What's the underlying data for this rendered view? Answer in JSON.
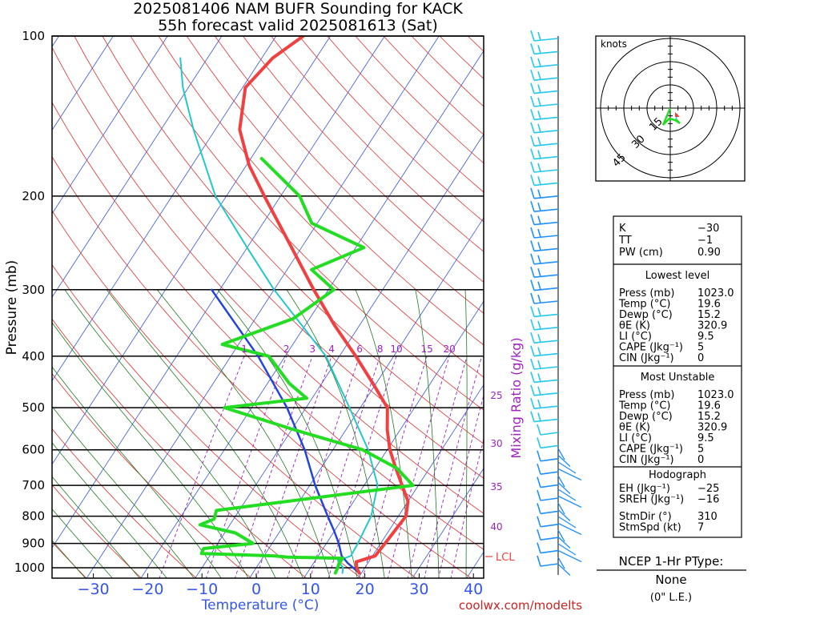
{
  "title": {
    "line1": "2025081406 NAM BUFR Sounding for KACK",
    "line2": "55h forecast valid 2025081613 (Sat)"
  },
  "axes": {
    "ylabel": "Pressure (mb)",
    "xlabel": "Temperature (°C)",
    "mixing_ratio_label": "Mixing Ratio (g/kg)",
    "lcl_label": "LCL",
    "credit": "coolwx.com/modelts"
  },
  "colors": {
    "temperature": "#f04040",
    "dewpoint": "#22dd22",
    "wetbulb": "#22c8cc",
    "parcel": "#2244dd",
    "isotherm": "#3355dd",
    "dry_adiabat": "#e03030",
    "moist_adiabat": "#207a20",
    "mixing_ratio": "#a020c0",
    "wind": "#22b4ee",
    "xaxis_text": "#3355ee"
  },
  "hodograph": {
    "units_label": "knots",
    "ring_labels": [
      "15",
      "30",
      "45"
    ]
  },
  "indices": {
    "top": [
      {
        "label": "K",
        "value": "−30"
      },
      {
        "label": "TT",
        "value": "−1"
      },
      {
        "label": "PW (cm)",
        "value": "0.90"
      }
    ],
    "lowest_level": {
      "heading": "Lowest level",
      "rows": [
        {
          "label": "Press (mb)",
          "value": "1023.0"
        },
        {
          "label": "Temp (°C)",
          "value": "19.6"
        },
        {
          "label": "Dewp (°C)",
          "value": "15.2"
        },
        {
          "label": "θE (K)",
          "value": "320.9"
        },
        {
          "label": "LI (°C)",
          "value": "9.5"
        },
        {
          "label": "CAPE (Jkg⁻¹)",
          "value": "5"
        },
        {
          "label": "CIN (Jkg⁻¹)",
          "value": "0"
        }
      ]
    },
    "most_unstable": {
      "heading": "Most Unstable",
      "rows": [
        {
          "label": "Press (mb)",
          "value": "1023.0"
        },
        {
          "label": "Temp (°C)",
          "value": "19.6"
        },
        {
          "label": "Dewp (°C)",
          "value": "15.2"
        },
        {
          "label": "θE (K)",
          "value": "320.9"
        },
        {
          "label": "LI (°C)",
          "value": "9.5"
        },
        {
          "label": "CAPE (Jkg⁻¹)",
          "value": "5"
        },
        {
          "label": "CIN (Jkg⁻¹)",
          "value": "0"
        }
      ]
    },
    "hodograph_stats": {
      "heading": "Hodograph",
      "rows": [
        {
          "label": "EH (Jkg⁻¹)",
          "value": "−25"
        },
        {
          "label": "SREH (Jkg⁻¹)",
          "value": "−16"
        },
        {
          "label": "StmDir (°)",
          "value": "310"
        },
        {
          "label": "StmSpd (kt)",
          "value": "7"
        }
      ]
    }
  },
  "ptype": {
    "heading": "NCEP 1-Hr PType:",
    "value": "None",
    "note": "(0\" L.E.)"
  },
  "chart_data": {
    "type": "line",
    "subtype": "skew-T log-P sounding",
    "title": "2025081406 NAM BUFR Sounding for KACK",
    "subtitle": "55h forecast valid 2025081613 (Sat)",
    "xlabel": "Temperature (°C)",
    "ylabel": "Pressure (mb)",
    "y_scale": "log",
    "ylim": [
      1050,
      100
    ],
    "xlim": [
      -40,
      42
    ],
    "x_ticks": [
      -30,
      -20,
      -10,
      0,
      10,
      20,
      30,
      40
    ],
    "x_tick_labels": [
      "−30",
      "−20",
      "−10",
      "0",
      "10",
      "20",
      "30",
      "40"
    ],
    "y_ticks": [
      100,
      200,
      300,
      400,
      500,
      600,
      700,
      800,
      900,
      1000
    ],
    "y_tick_labels": [
      "100",
      "200",
      "300",
      "400",
      "500",
      "600",
      "700",
      "800",
      "900",
      "1000"
    ],
    "mixing_ratio_labels": [
      "1",
      "2",
      "3",
      "4",
      "6",
      "8",
      "10",
      "15",
      "20",
      "25",
      "30",
      "35",
      "40"
    ],
    "grid": true,
    "series": [
      {
        "name": "Temperature",
        "color": "#f04040",
        "p": [
          1023,
          1000,
          975,
          950,
          930,
          900,
          850,
          800,
          750,
          700,
          650,
          600,
          550,
          500,
          450,
          400,
          350,
          300,
          250,
          200,
          175,
          150,
          125,
          110,
          100
        ],
        "t": [
          19.6,
          18.5,
          17.7,
          20.5,
          20.6,
          20.8,
          21.1,
          21.4,
          20.0,
          17.0,
          13.8,
          10.5,
          7.6,
          5.0,
          -0.6,
          -7.0,
          -14.6,
          -22.7,
          -31.8,
          -43.0,
          -49.5,
          -55.5,
          -59.5,
          -58.0,
          -55.0
        ]
      },
      {
        "name": "Dewpoint",
        "color": "#22dd22",
        "p": [
          1023,
          1000,
          980,
          960,
          955,
          950,
          940,
          920,
          900,
          860,
          830,
          810,
          780,
          700,
          650,
          600,
          550,
          500,
          480,
          450,
          400,
          380,
          340,
          300,
          275,
          250,
          225,
          200,
          185,
          170
        ],
        "t": [
          15.2,
          15.0,
          14.7,
          14.8,
          4.5,
          2.0,
          -11.8,
          -12.0,
          -3.5,
          -8.0,
          -15.5,
          -13.6,
          -14.2,
          19.0,
          14.0,
          5.5,
          -9.6,
          -25.0,
          -11.0,
          -16.0,
          -23.0,
          -33.0,
          -23.0,
          -19.0,
          -25.5,
          -18.5,
          -31.0,
          -36.5,
          -42.0,
          -48.0
        ]
      },
      {
        "name": "Wet-bulb",
        "color": "#22c8cc",
        "p": [
          1023,
          1000,
          970,
          950,
          900,
          850,
          800,
          700,
          600,
          500,
          400,
          300,
          250,
          200,
          150,
          125,
          110
        ],
        "t": [
          16.5,
          16.0,
          14.2,
          16.0,
          15.8,
          15.4,
          15.0,
          12.5,
          6.5,
          -2.0,
          -12.5,
          -30.0,
          -40.0,
          -52.0,
          -64.0,
          -71.0,
          -75.0
        ]
      },
      {
        "name": "Parcel",
        "color": "#2244dd",
        "p": [
          1023,
          980,
          950,
          900,
          850,
          800,
          700,
          600,
          500,
          400,
          300
        ],
        "t": [
          19.6,
          16.3,
          14.3,
          12.3,
          9.8,
          7.0,
          1.0,
          -5.2,
          -13.5,
          -25.0,
          -41.5
        ]
      }
    ],
    "lcl_pressure": 965
  }
}
